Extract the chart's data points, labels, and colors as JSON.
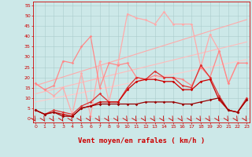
{
  "background_color": "#cce8e8",
  "grid_color": "#aacccc",
  "xlabel": "Vent moyen/en rafales ( km/h )",
  "xlabel_color": "#cc0000",
  "xlabel_fontsize": 6.5,
  "ylabel_ticks": [
    0,
    5,
    10,
    15,
    20,
    25,
    30,
    35,
    40,
    45,
    50,
    55
  ],
  "xticks": [
    0,
    1,
    2,
    3,
    4,
    5,
    6,
    7,
    8,
    9,
    10,
    11,
    12,
    13,
    14,
    15,
    16,
    17,
    18,
    19,
    20,
    21,
    22,
    23
  ],
  "xlim": [
    -0.3,
    23.3
  ],
  "ylim": [
    -2,
    57
  ],
  "series": [
    {
      "name": "trend_light3",
      "color": "#ffaaaa",
      "lw": 0.8,
      "marker": null,
      "y": [
        16,
        17.4,
        18.8,
        20.2,
        21.6,
        23.0,
        24.4,
        25.8,
        27.2,
        28.6,
        30.0,
        31.4,
        32.8,
        34.2,
        35.6,
        37.0,
        38.4,
        39.8,
        41.2,
        42.6,
        44.0,
        45.4,
        46.8,
        48.2
      ]
    },
    {
      "name": "trend_light2",
      "color": "#ffbbbb",
      "lw": 0.8,
      "marker": null,
      "y": [
        12,
        13.1,
        14.2,
        15.3,
        16.4,
        17.5,
        18.6,
        19.7,
        20.8,
        21.9,
        23.0,
        24.1,
        25.2,
        26.3,
        27.4,
        28.5,
        29.6,
        30.7,
        31.8,
        32.9,
        34.0,
        35.1,
        36.2,
        37.3
      ]
    },
    {
      "name": "trend_light1",
      "color": "#ffcccc",
      "lw": 0.8,
      "marker": null,
      "y": [
        8,
        8.9,
        9.8,
        10.7,
        11.6,
        12.5,
        13.4,
        14.3,
        15.2,
        16.1,
        17.0,
        17.9,
        18.8,
        19.7,
        20.6,
        21.5,
        22.4,
        23.3,
        24.2,
        25.1,
        26.0,
        26.9,
        27.8,
        28.7
      ]
    },
    {
      "name": "line_very_light",
      "color": "#ffaaaa",
      "lw": 0.9,
      "marker": "D",
      "markersize": 1.8,
      "y": [
        17,
        14,
        11,
        15,
        2,
        22,
        1,
        28,
        8,
        27,
        51,
        49,
        48,
        46,
        52,
        46,
        46,
        46,
        25,
        41,
        33,
        17,
        27,
        null
      ]
    },
    {
      "name": "line_medium_light",
      "color": "#ff8888",
      "lw": 0.9,
      "marker": "D",
      "markersize": 1.8,
      "y": [
        17,
        14,
        16,
        28,
        27,
        35,
        40,
        15,
        27,
        26,
        27,
        20,
        19,
        21,
        20,
        20,
        19,
        16,
        25,
        20,
        33,
        17,
        27,
        27
      ]
    },
    {
      "name": "line_medium",
      "color": "#dd3333",
      "lw": 0.9,
      "marker": "D",
      "markersize": 1.8,
      "y": [
        4,
        2,
        4,
        3,
        2,
        6,
        8,
        12,
        8,
        8,
        15,
        20,
        19,
        23,
        20,
        20,
        16,
        15,
        26,
        20,
        11,
        4,
        3,
        10
      ]
    },
    {
      "name": "line_dark2",
      "color": "#cc0000",
      "lw": 0.9,
      "marker": "D",
      "markersize": 1.8,
      "y": [
        4,
        2,
        3,
        2,
        1,
        5,
        6,
        8,
        8,
        8,
        14,
        18,
        19,
        19,
        18,
        18,
        14,
        14,
        18,
        19,
        9,
        4,
        3,
        9
      ]
    },
    {
      "name": "line_darkest",
      "color": "#990000",
      "lw": 0.9,
      "marker": "D",
      "markersize": 1.8,
      "y": [
        4,
        2,
        3,
        1,
        1,
        5,
        6,
        7,
        7,
        7,
        7,
        7,
        8,
        8,
        8,
        8,
        7,
        7,
        8,
        9,
        10,
        4,
        3,
        9
      ]
    }
  ]
}
